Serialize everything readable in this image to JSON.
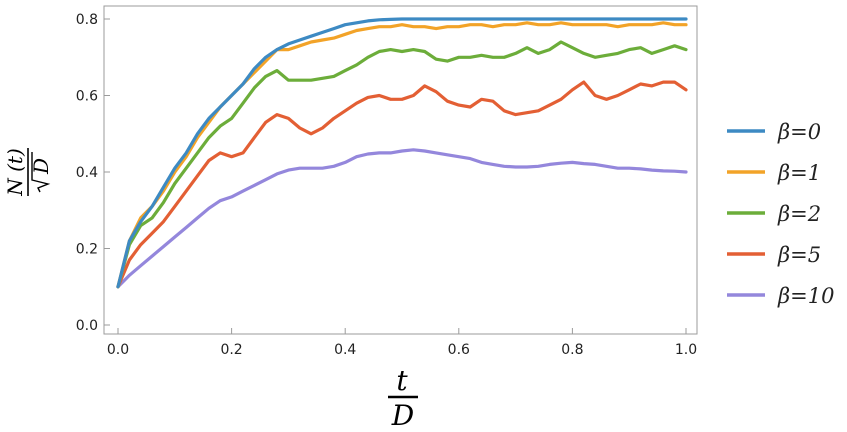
{
  "chart_data": {
    "type": "line",
    "xlabel": {
      "numerator": "t",
      "denominator": "D"
    },
    "ylabel": {
      "numerator": "N (t)",
      "denominator": "D"
    },
    "xlim": [
      0,
      1
    ],
    "ylim": [
      0,
      0.8
    ],
    "xticks": [
      "0.0",
      "0.2",
      "0.4",
      "0.6",
      "0.8",
      "1.0"
    ],
    "yticks": [
      "0.0",
      "0.2",
      "0.4",
      "0.6",
      "0.8"
    ],
    "grid": false,
    "legend_position": "right",
    "x": [
      0,
      0.02,
      0.04,
      0.06,
      0.08,
      0.1,
      0.12,
      0.14,
      0.16,
      0.18,
      0.2,
      0.22,
      0.24,
      0.26,
      0.28,
      0.3,
      0.32,
      0.34,
      0.36,
      0.38,
      0.4,
      0.42,
      0.44,
      0.46,
      0.48,
      0.5,
      0.52,
      0.54,
      0.56,
      0.58,
      0.6,
      0.62,
      0.64,
      0.66,
      0.68,
      0.7,
      0.72,
      0.74,
      0.76,
      0.78,
      0.8,
      0.82,
      0.84,
      0.86,
      0.88,
      0.9,
      0.92,
      0.94,
      0.96,
      0.98,
      1.0
    ],
    "series": [
      {
        "name": "β=0",
        "color": "#3d8ac3",
        "values": [
          0.1,
          0.22,
          0.27,
          0.31,
          0.36,
          0.41,
          0.45,
          0.5,
          0.54,
          0.57,
          0.6,
          0.63,
          0.67,
          0.7,
          0.72,
          0.735,
          0.745,
          0.755,
          0.765,
          0.775,
          0.785,
          0.79,
          0.795,
          0.798,
          0.799,
          0.8,
          0.8,
          0.8,
          0.8,
          0.8,
          0.8,
          0.8,
          0.8,
          0.8,
          0.8,
          0.8,
          0.8,
          0.8,
          0.8,
          0.8,
          0.8,
          0.8,
          0.8,
          0.8,
          0.8,
          0.8,
          0.8,
          0.8,
          0.8,
          0.8,
          0.8
        ]
      },
      {
        "name": "β=1",
        "color": "#f2a328",
        "values": [
          0.1,
          0.22,
          0.28,
          0.31,
          0.35,
          0.4,
          0.44,
          0.49,
          0.53,
          0.57,
          0.6,
          0.63,
          0.66,
          0.69,
          0.72,
          0.72,
          0.73,
          0.74,
          0.745,
          0.75,
          0.76,
          0.77,
          0.775,
          0.78,
          0.78,
          0.785,
          0.78,
          0.78,
          0.775,
          0.78,
          0.78,
          0.785,
          0.785,
          0.78,
          0.785,
          0.785,
          0.79,
          0.785,
          0.785,
          0.79,
          0.785,
          0.785,
          0.785,
          0.785,
          0.78,
          0.785,
          0.785,
          0.785,
          0.79,
          0.785,
          0.785
        ]
      },
      {
        "name": "β=2",
        "color": "#6cad3a",
        "values": [
          0.1,
          0.21,
          0.26,
          0.28,
          0.32,
          0.37,
          0.41,
          0.45,
          0.49,
          0.52,
          0.54,
          0.58,
          0.62,
          0.65,
          0.665,
          0.64,
          0.64,
          0.64,
          0.645,
          0.65,
          0.665,
          0.68,
          0.7,
          0.715,
          0.72,
          0.715,
          0.72,
          0.715,
          0.695,
          0.69,
          0.7,
          0.7,
          0.705,
          0.7,
          0.7,
          0.71,
          0.725,
          0.71,
          0.72,
          0.74,
          0.725,
          0.71,
          0.7,
          0.705,
          0.71,
          0.72,
          0.725,
          0.71,
          0.72,
          0.73,
          0.72
        ]
      },
      {
        "name": "β=5",
        "color": "#e35f34",
        "values": [
          0.1,
          0.17,
          0.21,
          0.24,
          0.27,
          0.31,
          0.35,
          0.39,
          0.43,
          0.45,
          0.44,
          0.45,
          0.49,
          0.53,
          0.55,
          0.54,
          0.515,
          0.5,
          0.515,
          0.54,
          0.56,
          0.58,
          0.595,
          0.6,
          0.59,
          0.59,
          0.6,
          0.625,
          0.61,
          0.585,
          0.575,
          0.57,
          0.59,
          0.585,
          0.56,
          0.55,
          0.555,
          0.56,
          0.575,
          0.59,
          0.615,
          0.635,
          0.6,
          0.59,
          0.6,
          0.615,
          0.63,
          0.625,
          0.635,
          0.635,
          0.615
        ]
      },
      {
        "name": "β=10",
        "color": "#9487dc",
        "values": [
          0.1,
          0.13,
          0.155,
          0.18,
          0.205,
          0.23,
          0.255,
          0.28,
          0.305,
          0.325,
          0.335,
          0.35,
          0.365,
          0.38,
          0.395,
          0.405,
          0.41,
          0.41,
          0.41,
          0.415,
          0.425,
          0.44,
          0.447,
          0.45,
          0.45,
          0.455,
          0.458,
          0.455,
          0.45,
          0.445,
          0.44,
          0.435,
          0.425,
          0.42,
          0.415,
          0.413,
          0.413,
          0.415,
          0.42,
          0.423,
          0.425,
          0.422,
          0.42,
          0.415,
          0.41,
          0.41,
          0.408,
          0.405,
          0.403,
          0.402,
          0.4
        ]
      }
    ]
  }
}
